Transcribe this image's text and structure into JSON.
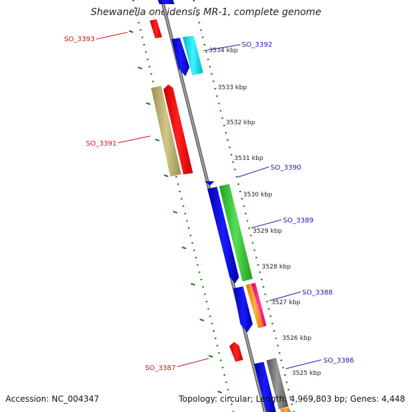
{
  "title": "Shewanella oneidensis MR-1, complete genome",
  "footer": {
    "accession": "Accession: NC_004347",
    "topology": "Topology: circular; Length: 4,969,803 bp; Genes: 4,448"
  },
  "colors": {
    "backbone": "#808080",
    "ticks": "#1a7a1a",
    "label_forward": "#1a1aa8",
    "label_reverse": "#d01010"
  },
  "ticks": [
    {
      "label": "3534 kbp"
    },
    {
      "label": "3533 kbp"
    },
    {
      "label": "3532 kbp"
    },
    {
      "label": "3531 kbp"
    },
    {
      "label": "3530 kbp"
    },
    {
      "label": "3529 kbp"
    },
    {
      "label": "3528 kbp"
    },
    {
      "label": "3527 kbp"
    },
    {
      "label": "3526 kbp"
    },
    {
      "label": "3525 kbp"
    }
  ],
  "gene_labels": [
    {
      "text": "SO_3393",
      "strand": "reverse"
    },
    {
      "text": "SO_3392",
      "strand": "forward"
    },
    {
      "text": "SO_3391",
      "strand": "reverse"
    },
    {
      "text": "SO_3390",
      "strand": "forward"
    },
    {
      "text": "SO_3389",
      "strand": "forward"
    },
    {
      "text": "SO_3388",
      "strand": "forward"
    },
    {
      "text": "SO_3387",
      "strand": "reverse"
    },
    {
      "text": "SO_3386",
      "strand": "forward"
    }
  ],
  "features": [
    {
      "name": "reverse-gene-SO_3393",
      "color": "#ff0000"
    },
    {
      "name": "forward-gene-blue-top",
      "color": "#0000ee"
    },
    {
      "name": "forward-gene-SO_3392-blue",
      "color": "#0000ee"
    },
    {
      "name": "forward-gene-SO_3392-cyan",
      "color": "#00e5ee"
    },
    {
      "name": "reverse-gene-SO_3391-olive",
      "color": "#bdb76b"
    },
    {
      "name": "reverse-gene-SO_3391-red",
      "color": "#ff0000"
    },
    {
      "name": "forward-gene-SO_3390",
      "color": "#0000ee"
    },
    {
      "name": "forward-gene-SO_3389-blue",
      "color": "#0000ee"
    },
    {
      "name": "forward-gene-SO_3389-green",
      "color": "#32cd32"
    },
    {
      "name": "forward-gene-SO_3388-blue",
      "color": "#0000ee"
    },
    {
      "name": "forward-gene-SO_3388-orange",
      "color": "#ff8c00"
    },
    {
      "name": "forward-gene-SO_3388-magenta",
      "color": "#ff1493"
    },
    {
      "name": "reverse-gene-SO_3387",
      "color": "#ff0000"
    },
    {
      "name": "forward-gene-SO_3386-blue",
      "color": "#0000ee"
    },
    {
      "name": "forward-gene-SO_3386-gray",
      "color": "#707070"
    },
    {
      "name": "forward-gene-bottom-blue",
      "color": "#0000ee"
    },
    {
      "name": "forward-gene-bottom-orange",
      "color": "#ff8c00"
    }
  ]
}
